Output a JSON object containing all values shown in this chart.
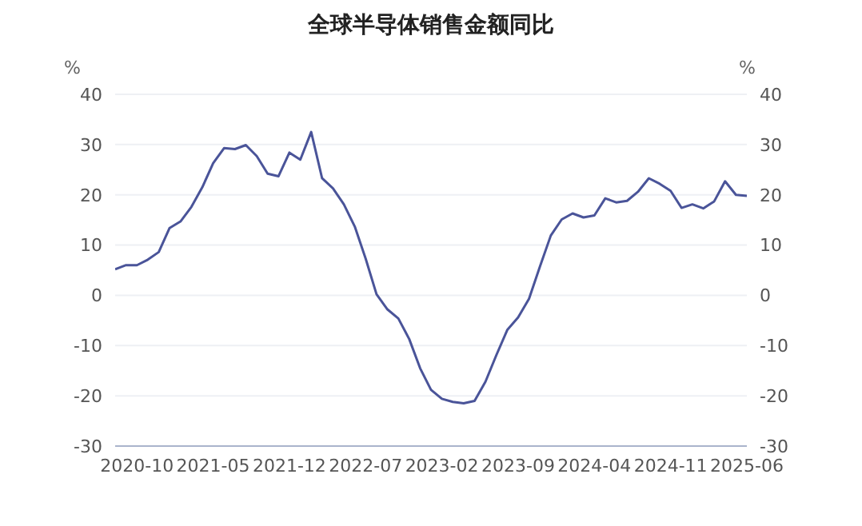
{
  "chart_data": {
    "type": "line",
    "title": "全球半导体销售金额同比",
    "ylabel": "%",
    "y2label": "%",
    "x": [
      "2020-08",
      "2020-09",
      "2020-10",
      "2020-11",
      "2020-12",
      "2021-01",
      "2021-02",
      "2021-03",
      "2021-04",
      "2021-05",
      "2021-06",
      "2021-07",
      "2021-08",
      "2021-09",
      "2021-10",
      "2021-11",
      "2021-12",
      "2022-01",
      "2022-02",
      "2022-03",
      "2022-04",
      "2022-05",
      "2022-06",
      "2022-07",
      "2022-08",
      "2022-09",
      "2022-10",
      "2022-11",
      "2022-12",
      "2023-01",
      "2023-02",
      "2023-03",
      "2023-04",
      "2023-05",
      "2023-06",
      "2023-07",
      "2023-08",
      "2023-09",
      "2023-10",
      "2023-11",
      "2023-12",
      "2024-01",
      "2024-02",
      "2024-03",
      "2024-04",
      "2024-05",
      "2024-06",
      "2024-07",
      "2024-08",
      "2024-09",
      "2024-10",
      "2024-11",
      "2024-12",
      "2025-01",
      "2025-02",
      "2025-03",
      "2025-04",
      "2025-05",
      "2025-06"
    ],
    "series": [
      {
        "color": "#4a5499",
        "values": [
          5.2,
          6.0,
          6.0,
          7.1,
          8.6,
          13.4,
          14.7,
          17.6,
          21.5,
          26.3,
          29.3,
          29.1,
          29.9,
          27.7,
          24.2,
          23.7,
          28.4,
          27.0,
          32.5,
          23.3,
          21.3,
          18.1,
          13.7,
          7.3,
          0.2,
          -2.8,
          -4.6,
          -8.7,
          -14.5,
          -18.8,
          -20.6,
          -21.2,
          -21.5,
          -21.0,
          -17.2,
          -11.9,
          -6.9,
          -4.4,
          -0.7,
          5.7,
          11.9,
          15.1,
          16.3,
          15.5,
          15.9,
          19.3,
          18.5,
          18.8,
          20.6,
          23.3,
          22.2,
          20.8,
          17.4,
          18.1,
          17.3,
          18.7,
          22.7,
          20.0,
          19.8
        ]
      }
    ],
    "xlim": [
      "2020-08",
      "2025-06"
    ],
    "xticks": [
      "2020-10",
      "2021-05",
      "2021-12",
      "2022-07",
      "2023-02",
      "2023-09",
      "2024-04",
      "2024-11",
      "2025-06"
    ],
    "ylim": [
      -30,
      40
    ],
    "yticks": [
      -30,
      -20,
      -10,
      0,
      10,
      20,
      30,
      40
    ],
    "y2lim": [
      -30,
      40
    ],
    "y2ticks": [
      -30,
      -20,
      -10,
      0,
      10,
      20,
      30,
      40
    ],
    "grid": "y",
    "legend": false,
    "marker": "none",
    "line_style": "solid"
  }
}
